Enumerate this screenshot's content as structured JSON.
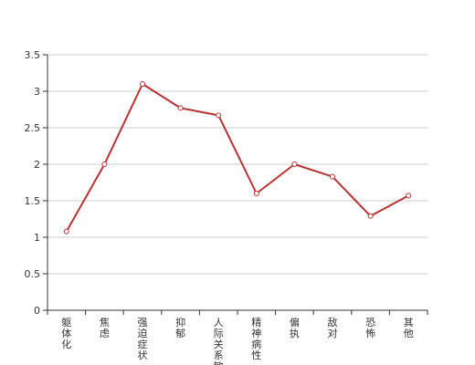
{
  "chart_data": {
    "type": "line",
    "categories": [
      "躯体化",
      "焦虑",
      "强迫症状",
      "抑郁",
      "人际关系敏感",
      "精神病性",
      "偏执",
      "敌对",
      "恐怖",
      "其他"
    ],
    "values": [
      1.08,
      2.0,
      3.1,
      2.77,
      2.67,
      1.6,
      2.0,
      1.83,
      1.29,
      1.57
    ],
    "ylim": [
      0,
      3.5
    ],
    "yticks": [
      "0",
      "0.5",
      "1",
      "1.5",
      "2",
      "2.5",
      "3",
      "3.5"
    ],
    "grid": true,
    "colors": {
      "line": "#b83232",
      "grid": "#cccccc",
      "axis": "#333333"
    }
  }
}
